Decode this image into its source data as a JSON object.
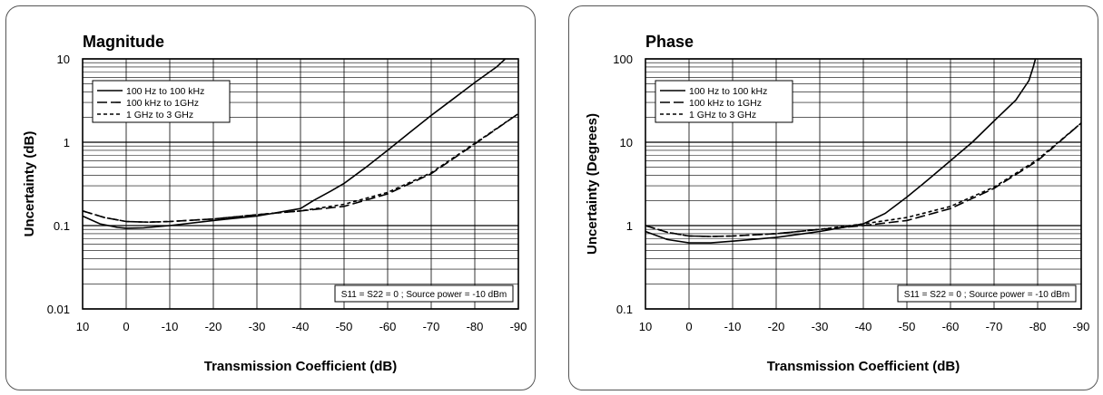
{
  "chart_data": [
    {
      "type": "line",
      "title": "Magnitude",
      "xlabel": "Transmission Coefficient (dB)",
      "ylabel": "Uncertainty (dB)",
      "xlim": [
        10,
        -90
      ],
      "ylim": [
        0.01,
        10
      ],
      "yscale": "log",
      "x_ticks": [
        "10",
        "0",
        "-10",
        "-20",
        "-30",
        "-40",
        "-50",
        "-60",
        "-70",
        "-80",
        "-90"
      ],
      "y_ticks": [
        "10",
        "1",
        "0.1",
        "0.01"
      ],
      "grid": true,
      "legend_position": "top-left",
      "annotation": "S11 = S22 = 0 ; Source power = -10 dBm",
      "series": [
        {
          "name": "100 Hz to 100 kHz",
          "style": "solid",
          "x": [
            10,
            6,
            2,
            0,
            -4,
            -10,
            -20,
            -30,
            -40,
            -43,
            -47,
            -50,
            -55,
            -60,
            -65,
            -70,
            -75,
            -80,
            -85,
            -87
          ],
          "y": [
            0.13,
            0.105,
            0.095,
            0.093,
            0.094,
            0.1,
            0.115,
            0.13,
            0.16,
            0.2,
            0.26,
            0.32,
            0.5,
            0.8,
            1.3,
            2.1,
            3.3,
            5.2,
            8.0,
            10
          ]
        },
        {
          "name": "100 kHz to  1GHz",
          "style": "dashed",
          "x": [
            10,
            5,
            0,
            -5,
            -10,
            -20,
            -30,
            -40,
            -50,
            -60,
            -70,
            -80,
            -90
          ],
          "y": [
            0.15,
            0.125,
            0.112,
            0.11,
            0.112,
            0.12,
            0.135,
            0.15,
            0.17,
            0.24,
            0.42,
            0.95,
            2.2
          ]
        },
        {
          "name": "1 GHz to 3 GHz",
          "style": "dotted",
          "x": [
            10,
            5,
            0,
            -5,
            -10,
            -20,
            -30,
            -40,
            -50,
            -60,
            -70,
            -80,
            -90
          ],
          "y": [
            0.15,
            0.125,
            0.112,
            0.11,
            0.112,
            0.12,
            0.135,
            0.15,
            0.18,
            0.25,
            0.43,
            0.97,
            2.2
          ]
        }
      ]
    },
    {
      "type": "line",
      "title": "Phase",
      "xlabel": "Transmission Coefficient (dB)",
      "ylabel": "Uncertainty (Degrees)",
      "xlim": [
        10,
        -90
      ],
      "ylim": [
        0.1,
        100
      ],
      "yscale": "log",
      "x_ticks": [
        "10",
        "0",
        "-10",
        "-20",
        "-30",
        "-40",
        "-50",
        "-60",
        "-70",
        "-80",
        "-90"
      ],
      "y_ticks": [
        "100",
        "10",
        "1",
        "0.1"
      ],
      "grid": true,
      "legend_position": "top-left",
      "annotation": "S11 = S22 = 0 ; Source power = -10 dBm",
      "series": [
        {
          "name": "100 Hz to 100 kHz",
          "style": "solid",
          "x": [
            10,
            5,
            0,
            -5,
            -10,
            -20,
            -30,
            -40,
            -45,
            -50,
            -55,
            -60,
            -65,
            -70,
            -75,
            -78,
            -79,
            -79.5
          ],
          "y": [
            0.85,
            0.68,
            0.62,
            0.62,
            0.65,
            0.72,
            0.85,
            1.05,
            1.4,
            2.2,
            3.6,
            6.0,
            10,
            18,
            32,
            55,
            80,
            100
          ]
        },
        {
          "name": "100 kHz to  1GHz",
          "style": "dashed",
          "x": [
            10,
            5,
            0,
            -5,
            -10,
            -20,
            -30,
            -40,
            -50,
            -60,
            -70,
            -80,
            -90
          ],
          "y": [
            1.0,
            0.83,
            0.75,
            0.74,
            0.75,
            0.8,
            0.9,
            1.0,
            1.15,
            1.6,
            2.8,
            6.0,
            17
          ]
        },
        {
          "name": "1 GHz to 3 GHz",
          "style": "dotted",
          "x": [
            10,
            5,
            0,
            -5,
            -10,
            -20,
            -30,
            -40,
            -50,
            -60,
            -70,
            -80,
            -90
          ],
          "y": [
            1.0,
            0.83,
            0.75,
            0.74,
            0.75,
            0.8,
            0.9,
            1.05,
            1.25,
            1.7,
            2.9,
            6.2,
            17
          ]
        }
      ]
    }
  ]
}
